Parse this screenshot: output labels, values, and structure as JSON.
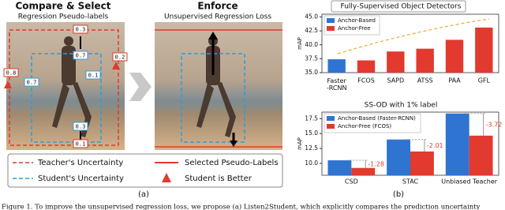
{
  "panel_a": {
    "compare_title": "Compare & Select",
    "compare_subtitle": "Regression Pseudo-labels",
    "enforce_title": "Enforce",
    "enforce_subtitle": "Unsupervised Regression Loss",
    "uncertainty_labels": [
      "0.3",
      "0.7",
      "0.2",
      "0.8",
      "0.7",
      "0.1",
      "0.3",
      "0.1"
    ],
    "legend": [
      "Teacher's Uncertainty",
      "Student's Uncertainty",
      "Selected Pseudo-Labels",
      "Student is Better"
    ],
    "caption": "(a)"
  },
  "caption_b": "(b)",
  "figure_caption": "Figure 1. To improve the unsupervised regression loss, we propose (a) Listen2Student, which explicitly compares the prediction uncertainty",
  "chart_data": [
    {
      "type": "bar",
      "title": "Fully-Supervised Object Detectors",
      "y_label": "mAP",
      "categories": [
        "Faster\n-RCNN",
        "FCOS",
        "SAPD",
        "ATSS",
        "PAA",
        "GFL"
      ],
      "series": [
        {
          "name": "Anchor-Based",
          "color": "#2f74d0",
          "values": [
            37.4,
            null,
            null,
            null,
            null,
            null
          ]
        },
        {
          "name": "Anchor-Free",
          "color": "#e23a2e",
          "values": [
            null,
            37.2,
            38.8,
            39.3,
            40.9,
            43.1
          ]
        }
      ],
      "ylim": [
        35,
        45.5
      ],
      "yticks": [
        {
          "value": 35,
          "label": "35.0"
        },
        {
          "value": 37.5,
          "label": "37.5"
        },
        {
          "value": 40,
          "label": "40.0"
        },
        {
          "value": 42.5,
          "label": "42.5"
        },
        {
          "value": 45,
          "label": "45.0"
        }
      ],
      "legend_position": "upper left"
    },
    {
      "type": "bar",
      "title": "SS-OD with 1% label",
      "y_label": "mAP",
      "categories": [
        "CSD",
        "STAC",
        "Unbiased Teacher"
      ],
      "series": [
        {
          "name": "Anchor-Based (Faster-RCNN)",
          "color": "#2f74d0",
          "values": [
            10.51,
            14.0,
            18.37
          ]
        },
        {
          "name": "Anchor-Free (FCOS)",
          "color": "#e23a2e",
          "values": [
            9.23,
            11.99,
            14.65
          ]
        }
      ],
      "annotations": [
        -1.28,
        -2.01,
        -3.72
      ],
      "ylim": [
        8,
        18.6
      ],
      "yticks": [
        {
          "value": 10,
          "label": "10.0"
        },
        {
          "value": 12.5,
          "label": "12.5"
        },
        {
          "value": 15,
          "label": "15.0"
        },
        {
          "value": 17.5,
          "label": "17.5"
        }
      ],
      "legend_position": "upper left"
    }
  ]
}
